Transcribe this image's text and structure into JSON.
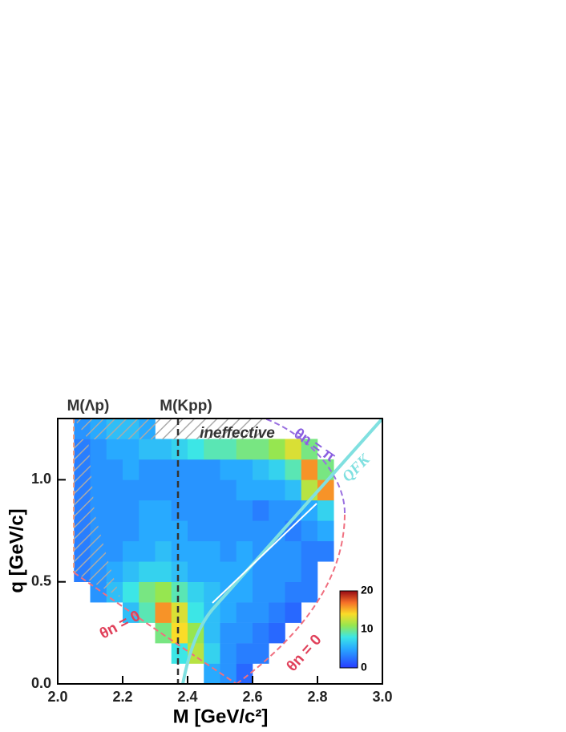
{
  "chart_data": {
    "type": "heatmap",
    "x_label": "M  [GeV/c²]",
    "y_label": "q  [GeV/c]",
    "xlim": [
      2.0,
      3.0
    ],
    "ylim": [
      0.0,
      1.3
    ],
    "xticks": [
      {
        "value": 2.0,
        "label": "2.0"
      },
      {
        "value": 2.2,
        "label": "2.2"
      },
      {
        "value": 2.4,
        "label": "2.4"
      },
      {
        "value": 2.6,
        "label": "2.6"
      },
      {
        "value": 2.8,
        "label": "2.8"
      },
      {
        "value": 3.0,
        "label": "3.0"
      }
    ],
    "yticks": [
      {
        "value": 0.0,
        "label": "0.0"
      },
      {
        "value": 0.5,
        "label": "0.5"
      },
      {
        "value": 1.0,
        "label": "1.0"
      }
    ],
    "xbins": [
      2.0,
      2.05,
      2.1,
      2.15,
      2.2,
      2.25,
      2.3,
      2.35,
      2.4,
      2.45,
      2.5,
      2.55,
      2.6,
      2.65,
      2.7,
      2.75,
      2.8,
      2.85,
      2.9,
      2.95,
      3.0
    ],
    "ybins": [
      0.0,
      0.1,
      0.2,
      0.3,
      0.4,
      0.5,
      0.6,
      0.7,
      0.8,
      0.9,
      1.0,
      1.1,
      1.2,
      1.3
    ],
    "z": [
      [
        null,
        null,
        null,
        null,
        null,
        null,
        null,
        null,
        null,
        5,
        4,
        2,
        null,
        null,
        null,
        null,
        null,
        null,
        null,
        null
      ],
      [
        null,
        null,
        null,
        null,
        null,
        null,
        null,
        8,
        12,
        7,
        4,
        3,
        3,
        null,
        null,
        null,
        null,
        null,
        null,
        null
      ],
      [
        null,
        null,
        null,
        null,
        null,
        null,
        10,
        14,
        11,
        6,
        4,
        4,
        3,
        2,
        null,
        null,
        null,
        null,
        null,
        null
      ],
      [
        null,
        null,
        null,
        null,
        6,
        9,
        16,
        13,
        8,
        6,
        5,
        4,
        4,
        3,
        2,
        null,
        null,
        null,
        null,
        null
      ],
      [
        null,
        null,
        4,
        6,
        8,
        10,
        11,
        9,
        7,
        6,
        5,
        5,
        4,
        4,
        3,
        3,
        null,
        null,
        null,
        null
      ],
      [
        null,
        3,
        4,
        5,
        6,
        7,
        7,
        6,
        5,
        5,
        5,
        5,
        4,
        4,
        4,
        3,
        null,
        null,
        null,
        null
      ],
      [
        null,
        3,
        4,
        4,
        5,
        5,
        6,
        5,
        5,
        5,
        4,
        5,
        4,
        4,
        4,
        3,
        3,
        null,
        null,
        null
      ],
      [
        null,
        3,
        4,
        4,
        4,
        5,
        5,
        5,
        4,
        4,
        4,
        4,
        4,
        4,
        3,
        4,
        5,
        null,
        null,
        null
      ],
      [
        null,
        3,
        4,
        4,
        4,
        5,
        5,
        4,
        4,
        4,
        4,
        4,
        3,
        4,
        4,
        5,
        7,
        null,
        null,
        null
      ],
      [
        null,
        3,
        4,
        4,
        4,
        4,
        4,
        4,
        4,
        4,
        4,
        5,
        5,
        5,
        6,
        12,
        16,
        null,
        null,
        null
      ],
      [
        null,
        3,
        4,
        4,
        5,
        4,
        4,
        4,
        4,
        4,
        5,
        5,
        6,
        7,
        9,
        16,
        10,
        null,
        null,
        null
      ],
      [
        null,
        3,
        4,
        5,
        5,
        6,
        6,
        7,
        8,
        9,
        9,
        10,
        10,
        11,
        13,
        10,
        null,
        null,
        null,
        null
      ],
      [
        null,
        4,
        5,
        6,
        6,
        5,
        null,
        null,
        null,
        null,
        null,
        null,
        null,
        null,
        null,
        null,
        null,
        null,
        null,
        null
      ]
    ],
    "colorlim": [
      0,
      20
    ],
    "colorticks": [
      0,
      10,
      20
    ],
    "annotations": [
      "M(Λp)",
      "M(Kpp)",
      "ineffective",
      "θn = π",
      "θn = 0",
      "θn = 0",
      "QFK"
    ]
  }
}
